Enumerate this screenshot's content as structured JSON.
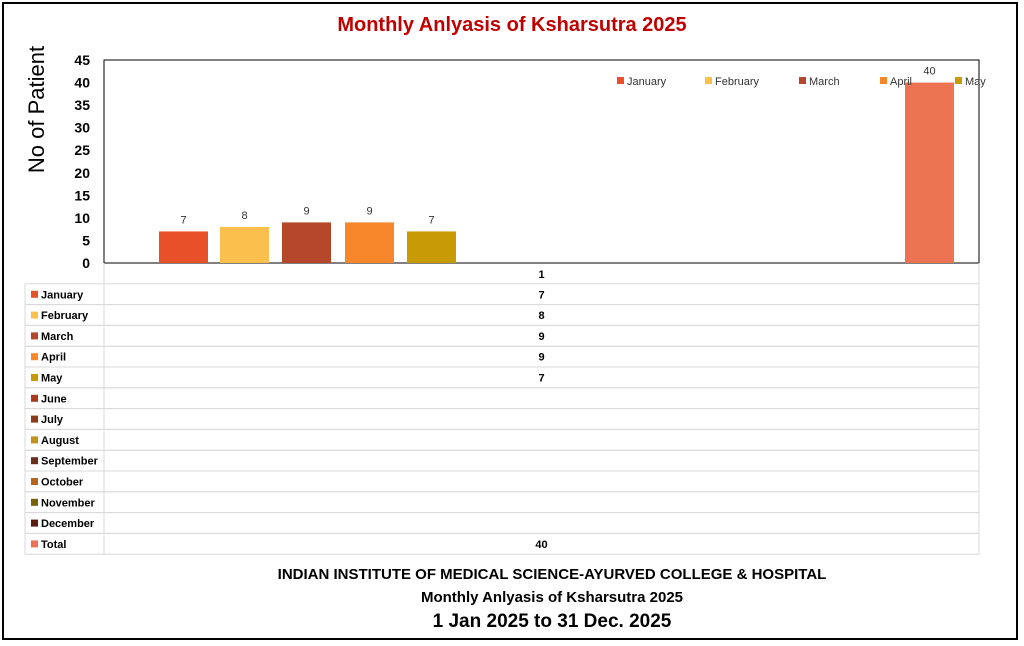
{
  "chart_data": {
    "type": "bar",
    "title": "Monthly Anlyasis of Ksharsutra  2025",
    "ylabel": "No of Patient",
    "ylim": [
      0,
      45
    ],
    "yticks": [
      "0",
      "5",
      "10",
      "15",
      "20",
      "25",
      "30",
      "35",
      "40",
      "45"
    ],
    "category_label": "1",
    "series": [
      {
        "name": "January",
        "color": "#e8502a",
        "value": 7,
        "label": "7"
      },
      {
        "name": "February",
        "color": "#fbbf4e",
        "value": 8,
        "label": "8"
      },
      {
        "name": "March",
        "color": "#b5472a",
        "value": 9,
        "label": "9"
      },
      {
        "name": "April",
        "color": "#f8862a",
        "value": 9,
        "label": "9"
      },
      {
        "name": "May",
        "color": "#c89a06",
        "value": 7,
        "label": "7"
      },
      {
        "name": "June",
        "color": "#a93a1c",
        "value": null,
        "label": ""
      },
      {
        "name": "July",
        "color": "#8d3a1a",
        "value": null,
        "label": ""
      },
      {
        "name": "August",
        "color": "#c7901e",
        "value": null,
        "label": ""
      },
      {
        "name": "September",
        "color": "#6b2e1a",
        "value": null,
        "label": ""
      },
      {
        "name": "October",
        "color": "#b7651c",
        "value": null,
        "label": ""
      },
      {
        "name": "November",
        "color": "#7a6008",
        "value": null,
        "label": ""
      },
      {
        "name": "December",
        "color": "#5a1d10",
        "value": null,
        "label": ""
      },
      {
        "name": "Total",
        "color": "#ec7453",
        "value": 40,
        "label": "40"
      }
    ],
    "legend_shown": [
      "January",
      "February",
      "March",
      "April",
      "May"
    ],
    "legend_placement": "top-right",
    "grid": false
  },
  "footer": {
    "institute": "INDIAN INSTITUTE OF MEDICAL SCIENCE-AYURVED COLLEGE & HOSPITAL",
    "subtitle": "Monthly Anlyasis of Ksharsutra  2025",
    "period": "1 Jan 2025 to 31 Dec. 2025"
  }
}
